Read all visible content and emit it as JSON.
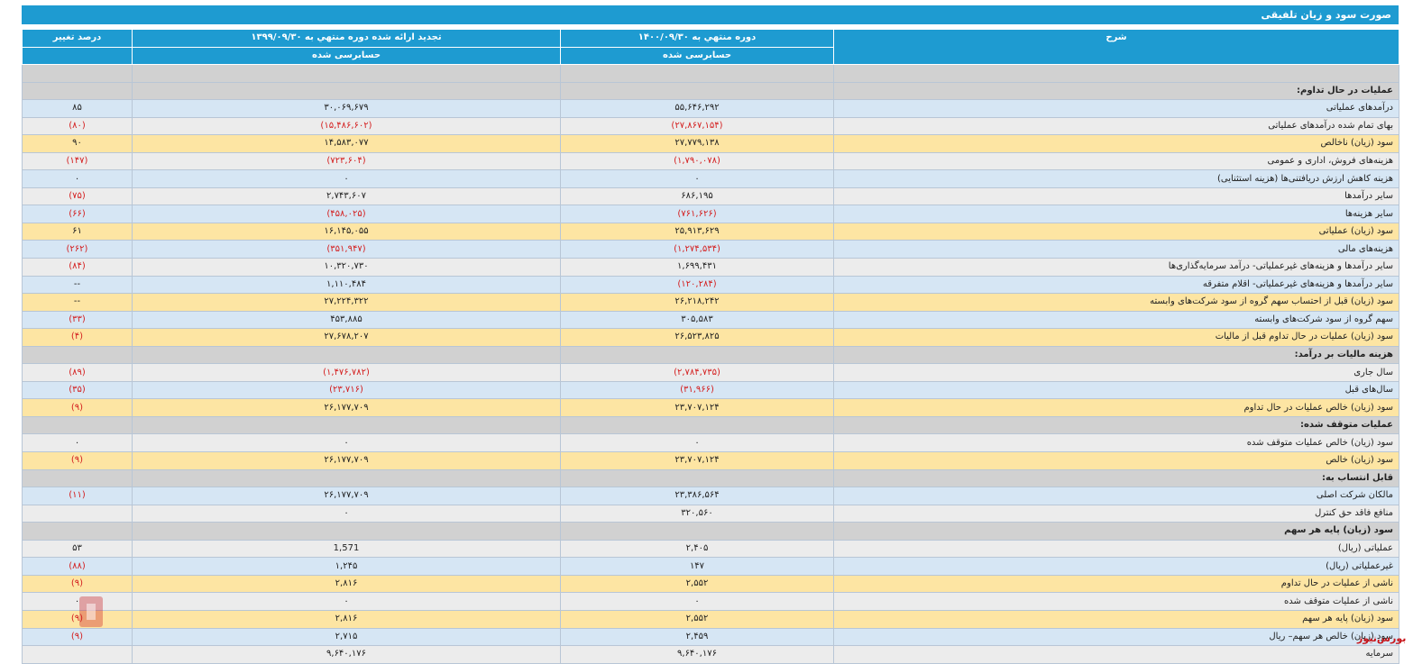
{
  "title": "صورت سود و زیان تلفیقی",
  "header": {
    "desc": "شرح",
    "period_current": "دوره منتهي به ۱۴۰۰/۰۹/۳۰",
    "period_prev": "تجدید ارائه شده دوره منتهي به ۱۳۹۹/۰۹/۳۰",
    "change": "درصد تغییر",
    "audit_current": "حسابرسی شده",
    "audit_prev": "حسابرسی شده"
  },
  "rows": [
    {
      "t": "s",
      "desc": ""
    },
    {
      "t": "s",
      "desc": "عملیات در حال تداوم:"
    },
    {
      "t": "b",
      "desc": "درآمدهای عملیاتی",
      "cur": "۵۵,۶۴۶,۲۹۲",
      "prev": "۳۰,۰۶۹,۶۷۹",
      "chg": "۸۵"
    },
    {
      "t": "g",
      "desc": "بهای تمام شده درآمدهای عملیاتی",
      "cur": "(۲۷,۸۶۷,۱۵۴)",
      "prev": "(۱۵,۴۸۶,۶۰۲)",
      "chg": "(۸۰)"
    },
    {
      "t": "y",
      "desc": "سود (زیان) ناخالص",
      "cur": "۲۷,۷۷۹,۱۳۸",
      "prev": "۱۴,۵۸۳,۰۷۷",
      "chg": "۹۰"
    },
    {
      "t": "g",
      "desc": "هزینه‌های فروش، اداری و عمومی",
      "cur": "(۱,۷۹۰,۰۷۸)",
      "prev": "(۷۲۳,۶۰۴)",
      "chg": "(۱۴۷)"
    },
    {
      "t": "b",
      "desc": "هزینه کاهش ارزش دریافتنی‌ها (هزینه استثنایی)",
      "cur": "۰",
      "prev": "۰",
      "chg": "۰"
    },
    {
      "t": "g",
      "desc": "سایر درآمدها",
      "cur": "۶۸۶,۱۹۵",
      "prev": "۲,۷۴۳,۶۰۷",
      "chg": "(۷۵)"
    },
    {
      "t": "b",
      "desc": "سایر هزینه‌ها",
      "cur": "(۷۶۱,۶۲۶)",
      "prev": "(۴۵۸,۰۲۵)",
      "chg": "(۶۶)"
    },
    {
      "t": "y",
      "desc": "سود (زیان) عملیاتی",
      "cur": "۲۵,۹۱۳,۶۲۹",
      "prev": "۱۶,۱۴۵,۰۵۵",
      "chg": "۶۱"
    },
    {
      "t": "b",
      "desc": "هزینه‌های مالی",
      "cur": "(۱,۲۷۴,۵۳۴)",
      "prev": "(۳۵۱,۹۴۷)",
      "chg": "(۲۶۲)"
    },
    {
      "t": "g",
      "desc": "سایر درآمدها و هزینه‌های غیرعملیاتی- درآمد سرمایه‌گذاری‌ها",
      "cur": "۱,۶۹۹,۴۳۱",
      "prev": "۱۰,۳۲۰,۷۳۰",
      "chg": "(۸۴)"
    },
    {
      "t": "b",
      "desc": "سایر درآمدها و هزینه‌های غیرعملیاتی- اقلام متفرقه",
      "cur": "(۱۲۰,۲۸۴)",
      "prev": "۱,۱۱۰,۴۸۴",
      "chg": "--"
    },
    {
      "t": "y",
      "desc": "سود (زیان) قبل از احتساب سهم گروه از سود شرکت‌های وابسته",
      "cur": "۲۶,۲۱۸,۲۴۲",
      "prev": "۲۷,۲۲۴,۳۲۲",
      "chg": "--"
    },
    {
      "t": "b",
      "desc": "سهم گروه از سود شرکت‌های وابسته",
      "cur": "۳۰۵,۵۸۳",
      "prev": "۴۵۳,۸۸۵",
      "chg": "(۳۳)"
    },
    {
      "t": "y",
      "desc": "سود (زیان) عملیات در حال تداوم قبل از مالیات",
      "cur": "۲۶,۵۲۳,۸۲۵",
      "prev": "۲۷,۶۷۸,۲۰۷",
      "chg": "(۴)"
    },
    {
      "t": "s",
      "desc": "هزینه مالیات بر درآمد:"
    },
    {
      "t": "g",
      "desc": "سال جاری",
      "cur": "(۲,۷۸۴,۷۳۵)",
      "prev": "(۱,۴۷۶,۷۸۲)",
      "chg": "(۸۹)"
    },
    {
      "t": "b",
      "desc": "سال‌های قبل",
      "cur": "(۳۱,۹۶۶)",
      "prev": "(۲۳,۷۱۶)",
      "chg": "(۳۵)"
    },
    {
      "t": "y",
      "desc": "سود (زیان) خالص عملیات در حال تداوم",
      "cur": "۲۳,۷۰۷,۱۲۴",
      "prev": "۲۶,۱۷۷,۷۰۹",
      "chg": "(۹)"
    },
    {
      "t": "s",
      "desc": "عملیات متوقف شده:"
    },
    {
      "t": "g",
      "desc": "سود (زیان) خالص عملیات متوقف شده",
      "cur": "۰",
      "prev": "۰",
      "chg": "۰"
    },
    {
      "t": "y",
      "desc": "سود (زیان) خالص",
      "cur": "۲۳,۷۰۷,۱۲۴",
      "prev": "۲۶,۱۷۷,۷۰۹",
      "chg": "(۹)"
    },
    {
      "t": "s",
      "desc": "قابل انتساب به:"
    },
    {
      "t": "b",
      "desc": "مالکان شرکت اصلی",
      "cur": "۲۳,۳۸۶,۵۶۴",
      "prev": "۲۶,۱۷۷,۷۰۹",
      "chg": "(۱۱)"
    },
    {
      "t": "g",
      "desc": "منافع فاقد حق کنترل",
      "cur": "۳۲۰,۵۶۰",
      "prev": "۰",
      "chg": ""
    },
    {
      "t": "s",
      "desc": "سود (زیان) پایه هر سهم"
    },
    {
      "t": "g",
      "desc": "عملیاتی (ریال)",
      "cur": "۲,۴۰۵",
      "prev": "1,571",
      "chg": "۵۳"
    },
    {
      "t": "b",
      "desc": "غیرعملیاتی (ریال)",
      "cur": "۱۴۷",
      "prev": "۱,۲۴۵",
      "chg": "(۸۸)"
    },
    {
      "t": "y",
      "desc": "ناشی از عملیات در حال تداوم",
      "cur": "۲,۵۵۲",
      "prev": "۲,۸۱۶",
      "chg": "(۹)"
    },
    {
      "t": "g",
      "desc": "ناشی از عملیات متوقف شده",
      "cur": "۰",
      "prev": "۰",
      "chg": "۰"
    },
    {
      "t": "y",
      "desc": "سود (زیان) پایه هر سهم",
      "cur": "۲,۵۵۲",
      "prev": "۲,۸۱۶",
      "chg": "(۹)"
    },
    {
      "t": "b",
      "desc": "سود (زیان) خالص هر سهم– ریال",
      "cur": "۲,۴۵۹",
      "prev": "۲,۷۱۵",
      "chg": "(۹)"
    },
    {
      "t": "g",
      "desc": "سرمایه",
      "cur": "۹,۶۴۰,۱۷۶",
      "prev": "۹,۶۴۰,۱۷۶",
      "chg": ""
    }
  ],
  "watermark_text": "بورس نیوز",
  "brand": "بورس‌نیوز",
  "colors": {
    "header": "#1e9bd1",
    "negative": "#d42020",
    "section": "#d1d1d1",
    "blue_row": "#d6e6f4",
    "gray_row": "#ececec",
    "yellow_row": "#fde5a3",
    "brand": "#c8171c"
  }
}
